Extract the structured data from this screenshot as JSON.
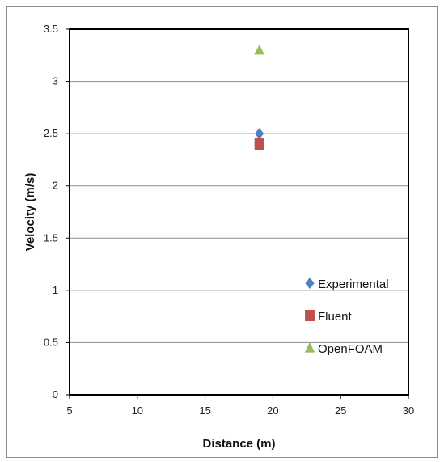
{
  "chart_data": {
    "type": "scatter",
    "xlabel": "Distance (m)",
    "ylabel": "Velocity (m/s)",
    "xlim": [
      5,
      30
    ],
    "ylim": [
      0,
      3.5
    ],
    "xticks": [
      "5",
      "10",
      "15",
      "20",
      "25",
      "30"
    ],
    "yticks": [
      "0",
      "0.5",
      "1",
      "1.5",
      "2",
      "2.5",
      "3",
      "3.5"
    ],
    "grid": "horizontal",
    "legend_position": "right",
    "series": [
      {
        "name": "Experimental",
        "marker": "diamond",
        "color": "#4f81bd",
        "points": [
          {
            "x": 19,
            "y": 2.5
          }
        ]
      },
      {
        "name": "Fluent",
        "marker": "square",
        "color": "#c0504d",
        "points": [
          {
            "x": 19,
            "y": 2.4
          }
        ]
      },
      {
        "name": "OpenFOAM",
        "marker": "triangle",
        "color": "#9bbb59",
        "points": [
          {
            "x": 19,
            "y": 3.3
          }
        ]
      }
    ]
  }
}
